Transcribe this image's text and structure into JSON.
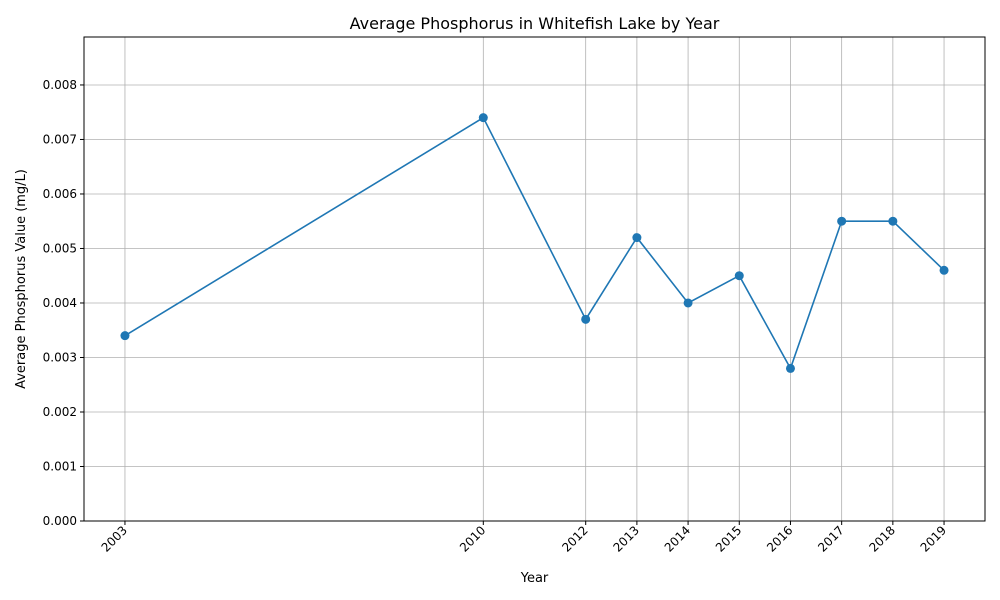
{
  "chart_data": {
    "type": "line",
    "title": "Average Phosphorus in Whitefish Lake by Year",
    "xlabel": "Year",
    "ylabel": "Average Phosphorus Value (mg/L)",
    "x": [
      2003,
      2010,
      2012,
      2013,
      2014,
      2015,
      2016,
      2017,
      2018,
      2019
    ],
    "x_tick_labels": [
      "2003",
      "2010",
      "2012",
      "2013",
      "2014",
      "2015",
      "2016",
      "2017",
      "2018",
      "2019"
    ],
    "series": [
      {
        "values": [
          0.0034,
          0.0074,
          0.0037,
          0.0052,
          0.004,
          0.0045,
          0.0028,
          0.0055,
          0.0055,
          0.0046
        ],
        "color": "#1f77b4",
        "marker": "circle"
      }
    ],
    "xlim": [
      2002.2,
      2019.8
    ],
    "ylim": [
      0,
      0.00888
    ],
    "y_ticks": [
      "0.000",
      "0.001",
      "0.002",
      "0.003",
      "0.004",
      "0.005",
      "0.006",
      "0.007",
      "0.008"
    ],
    "grid": true
  }
}
